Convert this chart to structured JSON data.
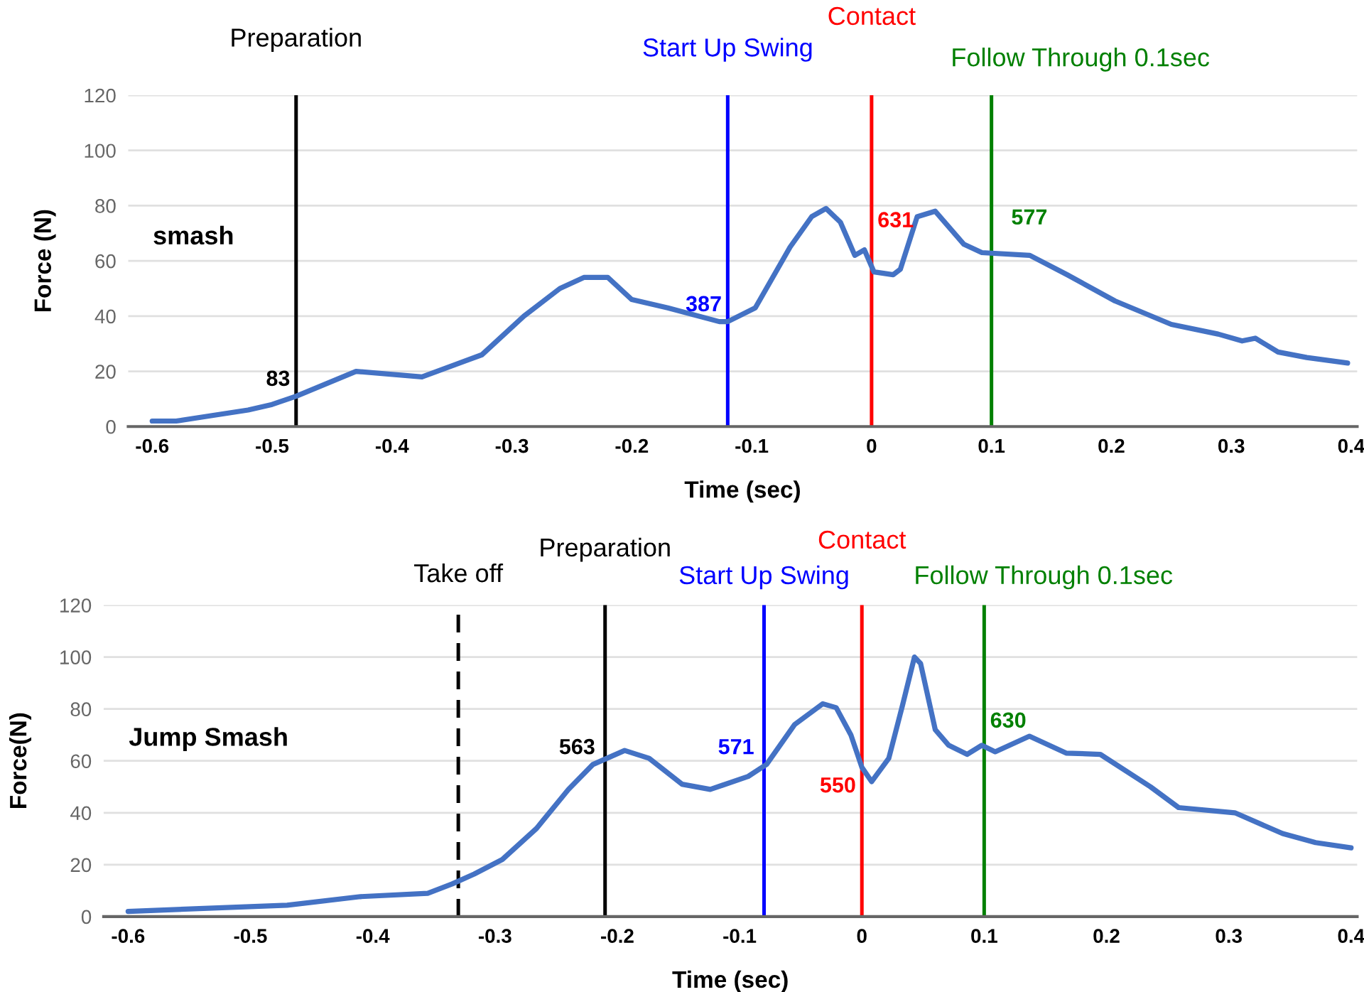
{
  "chart_data": [
    {
      "type": "line",
      "xlabel": "Time (sec)",
      "ylabel": "Force (N)",
      "xlim": [
        -0.62,
        0.405
      ],
      "ylim": [
        0,
        120
      ],
      "xticks": [
        -0.6,
        -0.5,
        -0.4,
        -0.3,
        -0.2,
        -0.1,
        0,
        0.1,
        0.2,
        0.3,
        0.4
      ],
      "yticks": [
        0,
        20,
        40,
        60,
        80,
        100,
        120
      ],
      "grid": "y",
      "legend": false,
      "series": [
        {
          "color": "#4472c4",
          "x": [
            -0.6,
            -0.58,
            -0.55,
            -0.52,
            -0.5,
            -0.48,
            -0.43,
            -0.375,
            -0.325,
            -0.29,
            -0.26,
            -0.24,
            -0.22,
            -0.2,
            -0.17,
            -0.127,
            -0.12,
            -0.097,
            -0.068,
            -0.05,
            -0.038,
            -0.026,
            -0.014,
            -0.006,
            0.002,
            0.018,
            0.024,
            0.038,
            0.053,
            0.077,
            0.092,
            0.132,
            0.163,
            0.203,
            0.25,
            0.289,
            0.309,
            0.32,
            0.339,
            0.363,
            0.397
          ],
          "values": [
            2,
            2,
            4,
            6,
            8,
            11,
            20,
            18,
            26,
            40,
            50,
            54,
            54,
            46,
            43,
            38,
            38,
            43,
            65,
            76,
            79,
            74,
            62,
            64,
            56,
            55,
            57,
            76,
            78,
            66,
            63,
            62,
            55,
            45.5,
            37,
            33.5,
            31,
            32,
            27,
            25,
            23
          ]
        }
      ],
      "ref_lines": [
        {
          "axis": "x",
          "value": -0.48,
          "label": "Preparation",
          "color": "#000000",
          "line_style": "solid"
        },
        {
          "axis": "x",
          "value": -0.12,
          "label": "Start Up Swing",
          "color": "#0000ff",
          "line_style": "solid"
        },
        {
          "axis": "x",
          "value": 0,
          "label": "Contact",
          "color": "#ff0000",
          "line_style": "solid"
        },
        {
          "axis": "x",
          "value": 0.1,
          "label": "Follow Through 0.1sec",
          "color": "#008000",
          "line_style": "solid"
        }
      ],
      "annotations": [
        "smash",
        {
          "text": "83",
          "x": -0.48,
          "y": 11
        },
        {
          "text": "387",
          "x": -0.12,
          "y": 38
        },
        {
          "text": "631",
          "x": 0,
          "y": 62
        },
        {
          "text": "577",
          "x": 0.1,
          "y": 63
        }
      ]
    },
    {
      "type": "line",
      "xlabel": "Time (sec)",
      "ylabel": "Force(N)",
      "xlim": [
        -0.62,
        0.405
      ],
      "ylim": [
        0,
        120
      ],
      "xticks": [
        -0.6,
        -0.5,
        -0.4,
        -0.3,
        -0.2,
        -0.1,
        0,
        0.1,
        0.2,
        0.3,
        0.4
      ],
      "yticks": [
        0,
        20,
        40,
        60,
        80,
        100,
        120
      ],
      "grid": "y",
      "legend": false,
      "series": [
        {
          "color": "#4472c4",
          "x": [
            -0.6,
            -0.47,
            -0.41,
            -0.355,
            -0.335,
            -0.317,
            -0.294,
            -0.266,
            -0.24,
            -0.22,
            -0.194,
            -0.174,
            -0.147,
            -0.124,
            -0.093,
            -0.078,
            -0.055,
            -0.032,
            -0.021,
            -0.009,
            0,
            0.008,
            0.022,
            0.033,
            0.043,
            0.048,
            0.06,
            0.071,
            0.086,
            0.098,
            0.109,
            0.137,
            0.167,
            0.195,
            0.236,
            0.259,
            0.305,
            0.344,
            0.371,
            0.4
          ],
          "values": [
            2,
            4.4,
            7.7,
            9,
            12.6,
            16.4,
            22,
            34,
            49,
            58.6,
            64,
            61,
            51,
            49,
            54,
            58.6,
            74,
            82,
            80.5,
            70,
            57.5,
            52,
            61,
            81,
            100,
            97.5,
            72,
            66,
            62.5,
            66,
            63.5,
            69.5,
            63,
            62.5,
            50,
            42,
            40,
            32,
            28.5,
            26.5
          ]
        }
      ],
      "ref_lines": [
        {
          "axis": "x",
          "value": -0.33,
          "label": "Take off",
          "color": "#000000",
          "line_style": "dashed"
        },
        {
          "axis": "x",
          "value": -0.21,
          "label": "Preparation",
          "color": "#000000",
          "line_style": "solid"
        },
        {
          "axis": "x",
          "value": -0.08,
          "label": "Start Up Swing",
          "color": "#0000ff",
          "line_style": "solid"
        },
        {
          "axis": "x",
          "value": 0,
          "label": "Contact",
          "color": "#ff0000",
          "line_style": "solid"
        },
        {
          "axis": "x",
          "value": 0.1,
          "label": "Follow Through 0.1sec",
          "color": "#008000",
          "line_style": "solid"
        }
      ],
      "annotations": [
        "Jump Smash",
        {
          "text": "563",
          "x": -0.21,
          "y": 58.6
        },
        {
          "text": "571",
          "x": -0.08,
          "y": 58.6
        },
        {
          "text": "550",
          "x": 0,
          "y": 57.5
        },
        {
          "text": "630",
          "x": 0.1,
          "y": 63.5
        }
      ]
    }
  ]
}
